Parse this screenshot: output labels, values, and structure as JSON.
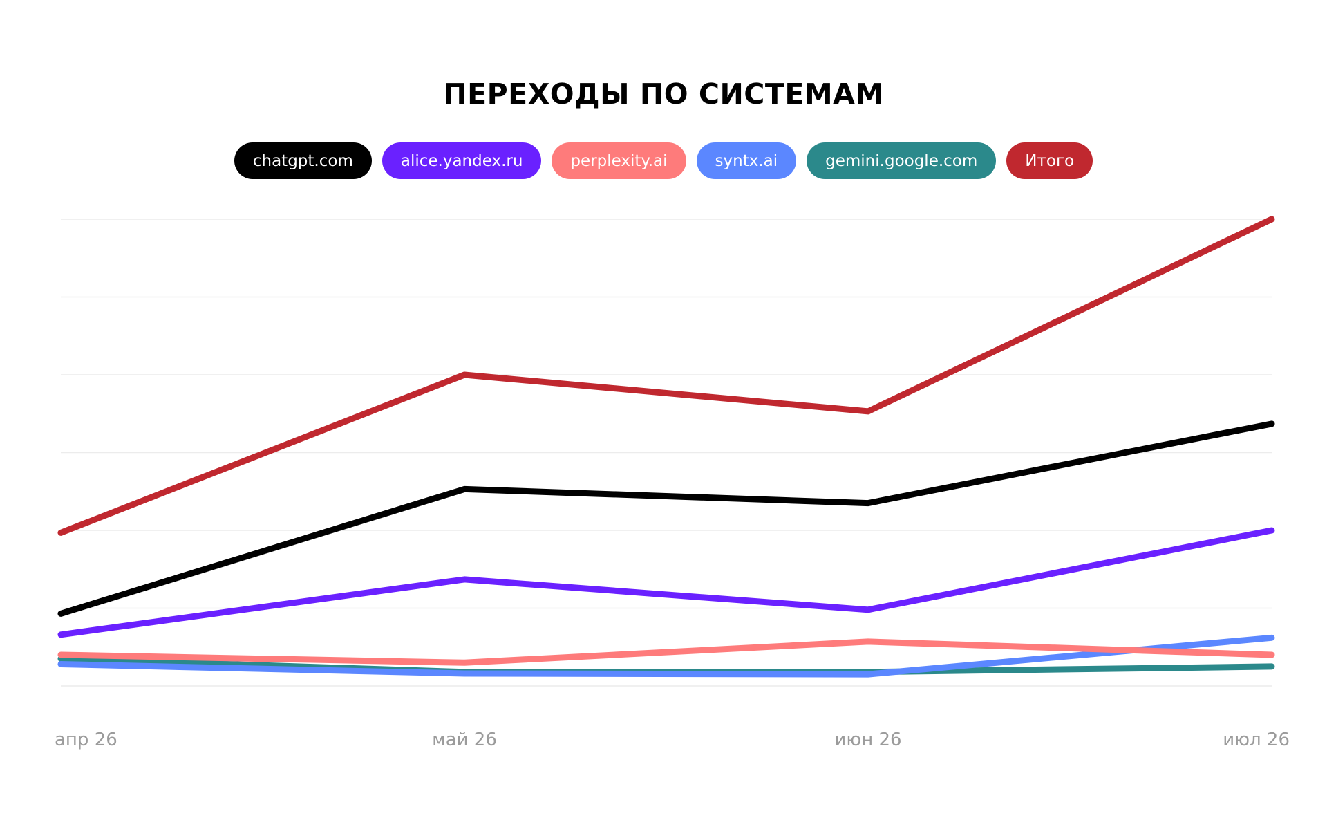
{
  "chart_data": {
    "type": "line",
    "title": "ПЕРЕХОДЫ ПО СИСТЕМАМ",
    "xlabel": "",
    "ylabel": "",
    "x": [
      "апр 26",
      "май 26",
      "июн 26",
      "июл 26"
    ],
    "ylim": [
      0,
      6
    ],
    "grid": true,
    "y_tick_labels_shown": false,
    "legend_position": "top-center",
    "series": [
      {
        "name": "chatgpt.com",
        "color": "#000000",
        "values": [
          0.93,
          2.53,
          2.35,
          3.37
        ]
      },
      {
        "name": "alice.yandex.ru",
        "color": "#6a21ff",
        "values": [
          0.66,
          1.37,
          0.98,
          2.0
        ]
      },
      {
        "name": "perplexity.ai",
        "color": "#fe7b7b",
        "values": [
          0.4,
          0.3,
          0.57,
          0.4
        ]
      },
      {
        "name": "syntx.ai",
        "color": "#5b87ff",
        "values": [
          0.28,
          0.16,
          0.15,
          0.62
        ]
      },
      {
        "name": "gemini.google.com",
        "color": "#2b898b",
        "values": [
          0.35,
          0.18,
          0.18,
          0.25
        ]
      },
      {
        "name": "Итого",
        "color": "#c0282f",
        "values": [
          1.97,
          4.0,
          3.53,
          6.0
        ]
      }
    ]
  }
}
